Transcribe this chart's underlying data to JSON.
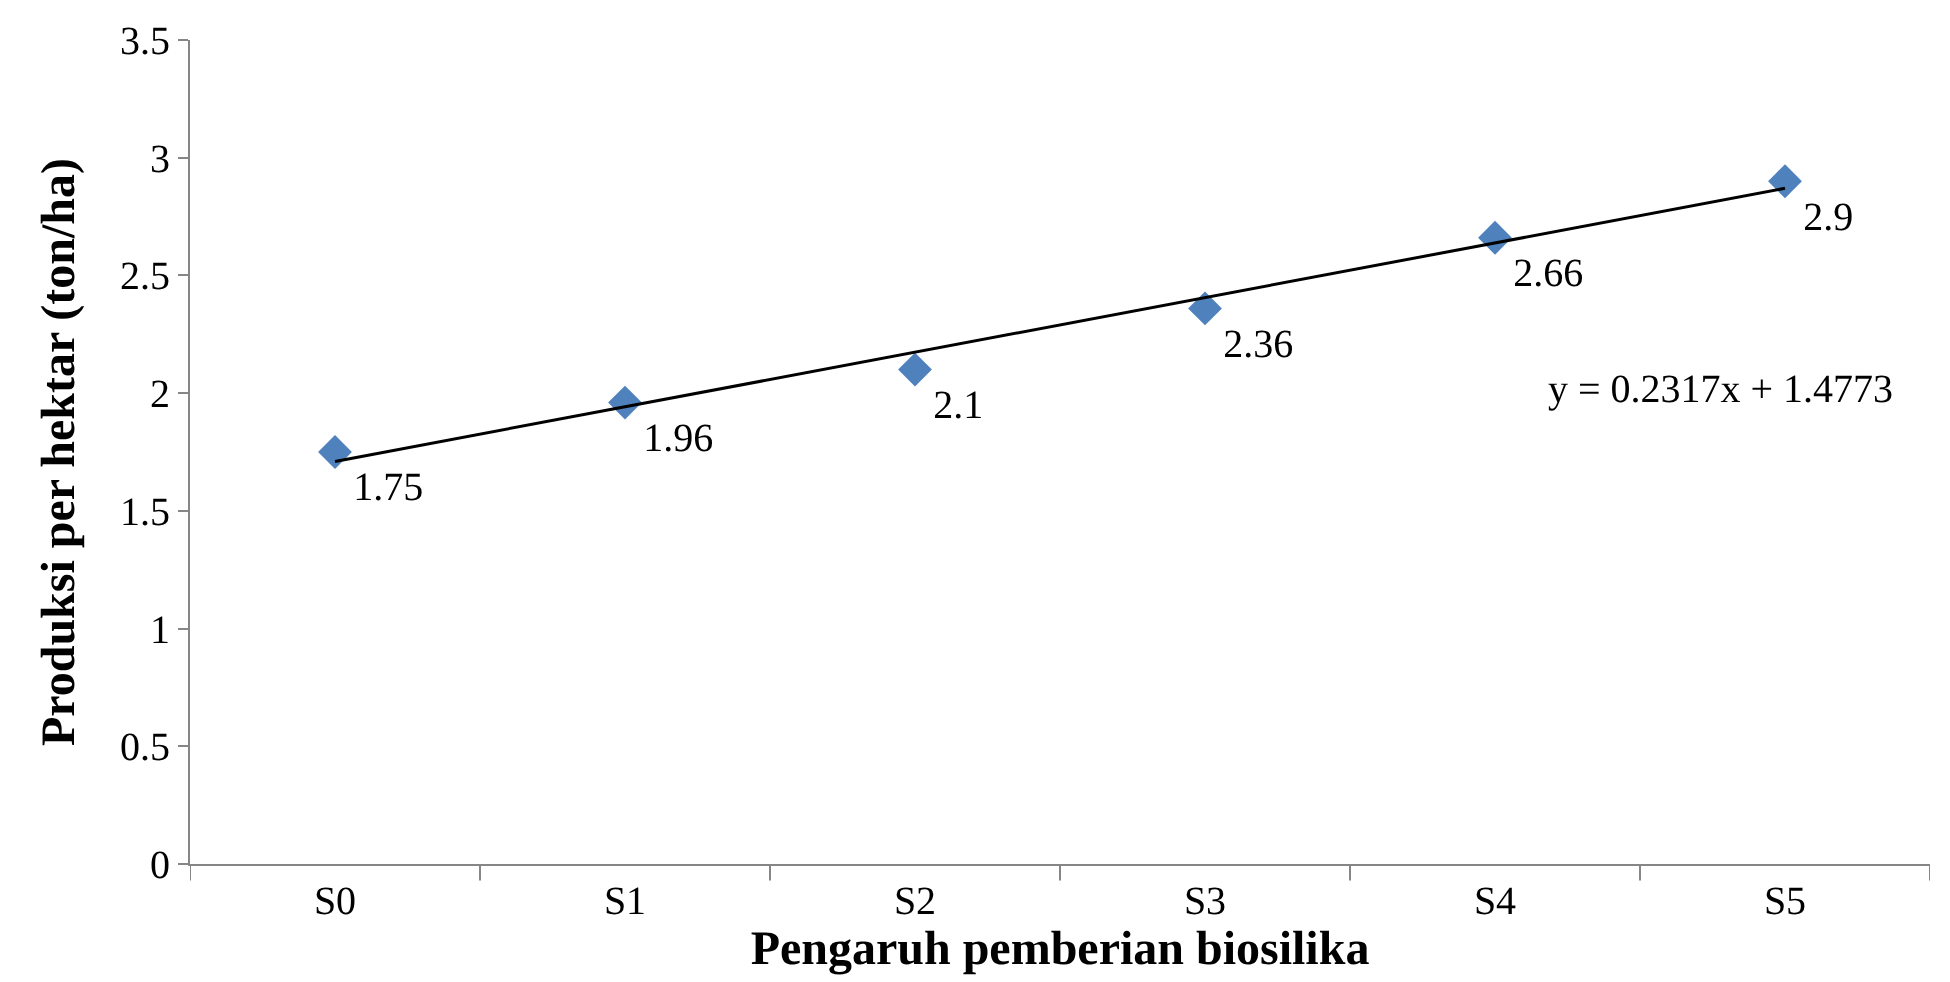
{
  "chart_data": {
    "type": "scatter",
    "xlabel": "Pengaruh pemberian biosilika",
    "ylabel": "Produksi per hektar (ton/ha)",
    "categories": [
      "S0",
      "S1",
      "S2",
      "S3",
      "S4",
      "S5"
    ],
    "series": [
      {
        "color": "#4f81bd",
        "marker": "diamond",
        "values": [
          1.75,
          1.96,
          2.1,
          2.36,
          2.66,
          2.9
        ],
        "value_labels": [
          "1.75",
          "1.96",
          "2.1",
          "2.36",
          "2.66",
          "2.9"
        ]
      },
      {
        "type": "line",
        "color": "#000000",
        "x": [
          "S0",
          "S5"
        ],
        "values": [
          1.71,
          2.87
        ]
      }
    ],
    "ylim": [
      0,
      3.5
    ],
    "yticks": [
      0,
      0.5,
      1,
      1.5,
      2,
      2.5,
      3,
      3.5
    ],
    "annotations": [
      "y = 0.2317x + 1.4773"
    ]
  }
}
